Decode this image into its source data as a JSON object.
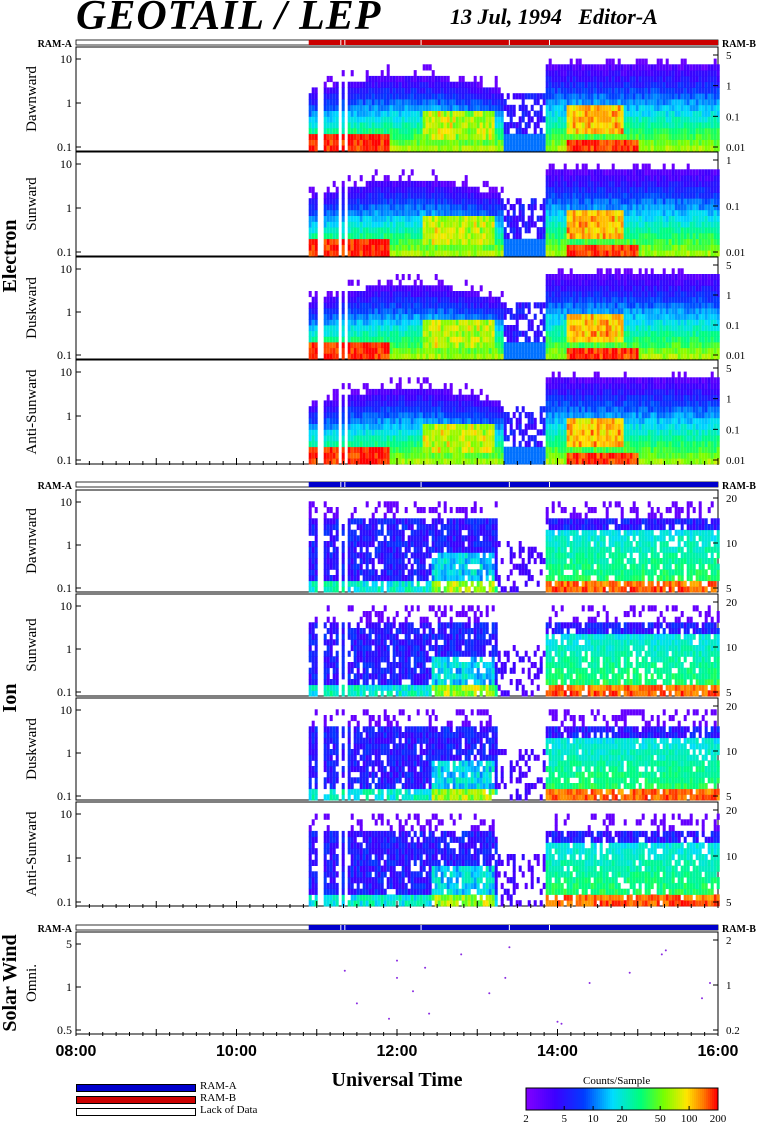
{
  "header": {
    "title": "GEOTAIL / LEP",
    "date": "13 Jul, 1994",
    "editor": "Editor-A"
  },
  "ram_labels": {
    "left": "RAM-A",
    "right": "RAM-B"
  },
  "colors": {
    "ram_a": "#0000cc",
    "ram_b": "#cc0000",
    "lack_of_data": "#ffffff"
  },
  "chart_data": {
    "type": "heatmap",
    "xlabel": "Universal Time",
    "x_ticks": [
      "08:00",
      "10:00",
      "12:00",
      "14:00",
      "16:00"
    ],
    "x_range_hours": [
      8,
      16
    ],
    "data_start_hour": 10.9,
    "ram_state_bands": [
      {
        "group": "Electron",
        "mode": "RAM-B",
        "start_hour": 10.9,
        "end_hour": 16.0
      },
      {
        "group": "Ion",
        "mode": "RAM-A",
        "start_hour": 10.9,
        "end_hour": 16.0
      },
      {
        "group": "Solar Wind",
        "mode": "RAM-A",
        "start_hour": 10.9,
        "end_hour": 16.0
      }
    ],
    "groups": [
      {
        "name": "Electron",
        "panels": [
          {
            "name": "Dawnward",
            "left_ticks": [
              "10",
              "1",
              "0.1"
            ],
            "right_ticks": [
              "5",
              "1",
              "0.1",
              "0.01"
            ]
          },
          {
            "name": "Sunward",
            "left_ticks": [
              "10",
              "1",
              "0.1"
            ],
            "right_ticks": [
              "1",
              "0.1",
              "0.01"
            ]
          },
          {
            "name": "Duskward",
            "left_ticks": [
              "10",
              "1",
              "0.1"
            ],
            "right_ticks": [
              "5",
              "1",
              "0.1",
              "0.01"
            ]
          },
          {
            "name": "Anti-Sunward",
            "left_ticks": [
              "10",
              "1",
              "0.1"
            ],
            "right_ticks": [
              "5",
              "1",
              "0.1",
              "0.01"
            ]
          }
        ]
      },
      {
        "name": "Ion",
        "panels": [
          {
            "name": "Dawnward",
            "left_ticks": [
              "10",
              "1",
              "0.1"
            ],
            "right_ticks": [
              "20",
              "10",
              "5"
            ]
          },
          {
            "name": "Sunward",
            "left_ticks": [
              "10",
              "1",
              "0.1"
            ],
            "right_ticks": [
              "20",
              "10",
              "5"
            ]
          },
          {
            "name": "Duskward",
            "left_ticks": [
              "10",
              "1",
              "0.1"
            ],
            "right_ticks": [
              "20",
              "10",
              "5"
            ]
          },
          {
            "name": "Anti-Sunward",
            "left_ticks": [
              "10",
              "1",
              "0.1"
            ],
            "right_ticks": [
              "20",
              "10",
              "5"
            ]
          }
        ]
      },
      {
        "name": "Solar Wind",
        "panels": [
          {
            "name": "Omni.",
            "left_ticks": [
              "5",
              "1",
              "0.5"
            ],
            "right_ticks": [
              "2",
              "1",
              "0.2"
            ]
          }
        ]
      }
    ],
    "colorbar": {
      "title": "Counts/Sample",
      "ticks": [
        "2",
        "5",
        "10",
        "20",
        "50",
        "100",
        "200"
      ]
    },
    "legend": [
      {
        "label": "RAM-A",
        "color": "#0000cc"
      },
      {
        "label": "RAM-B",
        "color": "#cc0000"
      },
      {
        "label": "Lack of Data",
        "color": "#ffffff"
      }
    ]
  }
}
